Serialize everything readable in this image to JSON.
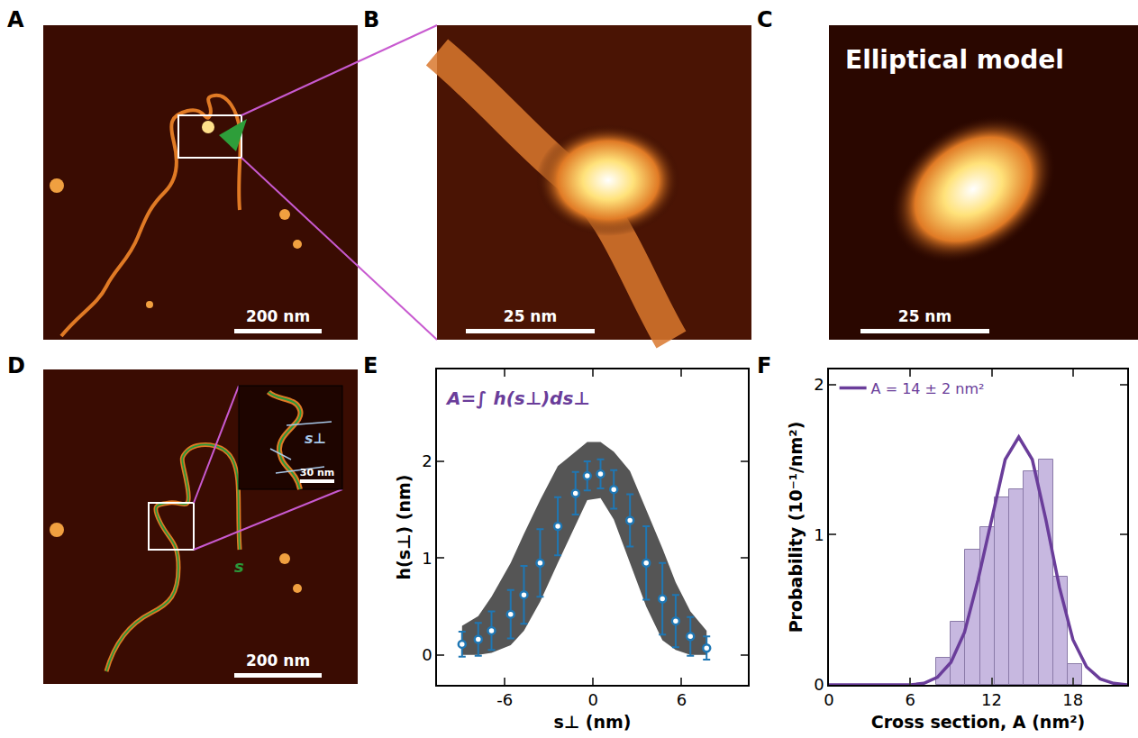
{
  "panel_labels": [
    "A",
    "B",
    "C",
    "D",
    "E",
    "F"
  ],
  "images": {
    "A": {
      "scale_bar": "200 nm"
    },
    "B": {
      "scale_bar": "25 nm"
    },
    "C": {
      "title": "Elliptical model",
      "scale_bar": "25 nm"
    },
    "D": {
      "scale_bar": "200 nm",
      "inset_scale_bar": "30 nm",
      "labels": [
        "s⊥",
        "s"
      ]
    }
  },
  "chart_data": [
    {
      "type": "scatter",
      "annotation": "A=∫ h(s⊥)ds⊥",
      "x_label": "s⊥ (nm)",
      "y_label": "h(s⊥) (nm)",
      "x": [
        -8.9,
        -7.8,
        -6.9,
        -5.6,
        -4.7,
        -3.6,
        -2.4,
        -1.2,
        -0.4,
        0.5,
        1.4,
        2.5,
        3.6,
        4.7,
        5.6,
        6.6,
        7.7
      ],
      "values": [
        0.11,
        0.16,
        0.25,
        0.42,
        0.62,
        0.95,
        1.33,
        1.67,
        1.85,
        1.87,
        1.71,
        1.39,
        0.95,
        0.58,
        0.35,
        0.19,
        0.07
      ],
      "error": [
        0.13,
        0.17,
        0.2,
        0.25,
        0.3,
        0.35,
        0.3,
        0.22,
        0.15,
        0.15,
        0.2,
        0.27,
        0.38,
        0.37,
        0.27,
        0.2,
        0.12
      ],
      "envelope_lower": [
        0,
        0,
        0.02,
        0.1,
        0.25,
        0.55,
        0.95,
        1.35,
        1.6,
        1.62,
        1.4,
        0.95,
        0.5,
        0.15,
        0.05,
        0,
        0
      ],
      "envelope_upper": [
        0.3,
        0.4,
        0.6,
        0.95,
        1.25,
        1.6,
        1.95,
        2.1,
        2.2,
        2.2,
        2.1,
        1.9,
        1.5,
        1.1,
        0.75,
        0.45,
        0.25
      ],
      "envelope_color": "#555555",
      "color": "#1f77b4",
      "marker": "circle",
      "xlim": [
        -10.6,
        10.5
      ],
      "ylim": [
        -0.31,
        2.95
      ],
      "xticks": [
        -6,
        0,
        6
      ],
      "yticks": [
        0,
        1,
        2
      ],
      "grid": false
    },
    {
      "type": "histogram",
      "x_label": "Cross section, A (nm²)",
      "y_label": "Probability (10⁻¹/nm²)",
      "bins": [
        7.9,
        8.98,
        10.06,
        11.14,
        12.22,
        13.3,
        14.38,
        15.46,
        16.54,
        17.62,
        18.7
      ],
      "counts": [
        0.18,
        0.42,
        0.9,
        1.05,
        1.25,
        1.3,
        1.42,
        1.5,
        0.72,
        0.14
      ],
      "color": "#c7b8e0",
      "fit": {
        "type": "line",
        "name": "A = 14 ± 2 nm²",
        "color": "#6a3d9a",
        "x": [
          0,
          1,
          2,
          3,
          4,
          5,
          6,
          7,
          8,
          9,
          10,
          11,
          12,
          13,
          14,
          15,
          16,
          17,
          18,
          19,
          20,
          21,
          22
        ],
        "values": [
          0,
          0,
          0,
          0,
          0,
          0,
          0,
          0.01,
          0.05,
          0.15,
          0.35,
          0.7,
          1.1,
          1.5,
          1.65,
          1.5,
          1.1,
          0.65,
          0.3,
          0.12,
          0.04,
          0.01,
          0
        ]
      },
      "legend": "upper left",
      "xlim": [
        0,
        22
      ],
      "ylim": [
        0,
        2.1
      ],
      "xticks": [
        0,
        6,
        12,
        18
      ],
      "yticks": [
        0,
        1,
        2
      ],
      "grid": false
    }
  ]
}
